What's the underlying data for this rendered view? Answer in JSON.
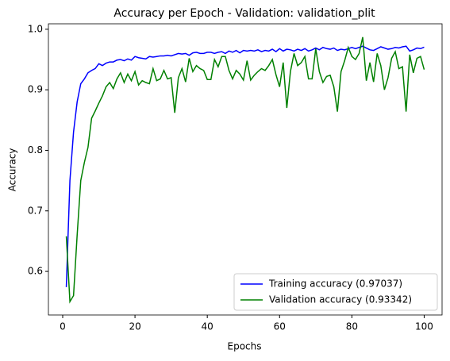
{
  "chart_data": {
    "type": "line",
    "title": "Accuracy per Epoch - Validation: validation_plit",
    "xlabel": "Epochs",
    "ylabel": "Accuracy",
    "x": [
      1,
      2,
      3,
      4,
      5,
      6,
      7,
      8,
      9,
      10,
      11,
      12,
      13,
      14,
      15,
      16,
      17,
      18,
      19,
      20,
      21,
      22,
      23,
      24,
      25,
      26,
      27,
      28,
      29,
      30,
      31,
      32,
      33,
      34,
      35,
      36,
      37,
      38,
      39,
      40,
      41,
      42,
      43,
      44,
      45,
      46,
      47,
      48,
      49,
      50,
      51,
      52,
      53,
      54,
      55,
      56,
      57,
      58,
      59,
      60,
      61,
      62,
      63,
      64,
      65,
      66,
      67,
      68,
      69,
      70,
      71,
      72,
      73,
      74,
      75,
      76,
      77,
      78,
      79,
      80,
      81,
      82,
      83,
      84,
      85,
      86,
      87,
      88,
      89,
      90,
      91,
      92,
      93,
      94,
      95,
      96,
      97,
      98,
      99,
      100
    ],
    "series": [
      {
        "name": "Training accuracy (0.97037)",
        "color": "#0000ff",
        "values": [
          0.574,
          0.75,
          0.83,
          0.88,
          0.91,
          0.918,
          0.928,
          0.932,
          0.935,
          0.943,
          0.94,
          0.944,
          0.946,
          0.946,
          0.949,
          0.95,
          0.948,
          0.951,
          0.949,
          0.955,
          0.953,
          0.952,
          0.951,
          0.955,
          0.954,
          0.955,
          0.956,
          0.956,
          0.957,
          0.956,
          0.958,
          0.96,
          0.959,
          0.96,
          0.957,
          0.961,
          0.962,
          0.96,
          0.96,
          0.962,
          0.962,
          0.96,
          0.962,
          0.963,
          0.96,
          0.964,
          0.962,
          0.965,
          0.961,
          0.965,
          0.964,
          0.965,
          0.964,
          0.966,
          0.963,
          0.965,
          0.964,
          0.967,
          0.963,
          0.968,
          0.964,
          0.967,
          0.966,
          0.964,
          0.967,
          0.965,
          0.968,
          0.964,
          0.966,
          0.969,
          0.966,
          0.97,
          0.968,
          0.967,
          0.969,
          0.965,
          0.967,
          0.966,
          0.968,
          0.97,
          0.968,
          0.97,
          0.972,
          0.969,
          0.966,
          0.965,
          0.968,
          0.971,
          0.969,
          0.967,
          0.968,
          0.97,
          0.969,
          0.971,
          0.972,
          0.964,
          0.966,
          0.969,
          0.968,
          0.97037
        ]
      },
      {
        "name": "Validation accuracy (0.93342)",
        "color": "#008000",
        "values": [
          0.658,
          0.55,
          0.56,
          0.66,
          0.75,
          0.78,
          0.805,
          0.853,
          0.865,
          0.878,
          0.89,
          0.905,
          0.912,
          0.902,
          0.918,
          0.928,
          0.912,
          0.926,
          0.915,
          0.93,
          0.908,
          0.915,
          0.912,
          0.91,
          0.935,
          0.915,
          0.918,
          0.932,
          0.918,
          0.92,
          0.862,
          0.92,
          0.935,
          0.913,
          0.952,
          0.93,
          0.94,
          0.935,
          0.932,
          0.917,
          0.917,
          0.95,
          0.938,
          0.955,
          0.955,
          0.932,
          0.918,
          0.932,
          0.926,
          0.916,
          0.948,
          0.916,
          0.924,
          0.93,
          0.935,
          0.932,
          0.94,
          0.95,
          0.925,
          0.905,
          0.945,
          0.87,
          0.93,
          0.96,
          0.94,
          0.945,
          0.955,
          0.918,
          0.918,
          0.968,
          0.93,
          0.912,
          0.922,
          0.924,
          0.905,
          0.864,
          0.93,
          0.948,
          0.97,
          0.955,
          0.95,
          0.96,
          0.987,
          0.915,
          0.945,
          0.913,
          0.96,
          0.94,
          0.9,
          0.92,
          0.952,
          0.963,
          0.935,
          0.938,
          0.864,
          0.958,
          0.928,
          0.952,
          0.955,
          0.93342
        ]
      }
    ],
    "xlim": [
      -3.95,
      104.95
    ],
    "ylim": [
      0.528,
      1.009
    ],
    "xticks": [
      0,
      20,
      40,
      60,
      80,
      100
    ],
    "yticks": [
      0.6,
      0.7,
      0.8,
      0.9,
      {
        "value": 1,
        "label": "1.0"
      }
    ],
    "legend": "lower right"
  }
}
